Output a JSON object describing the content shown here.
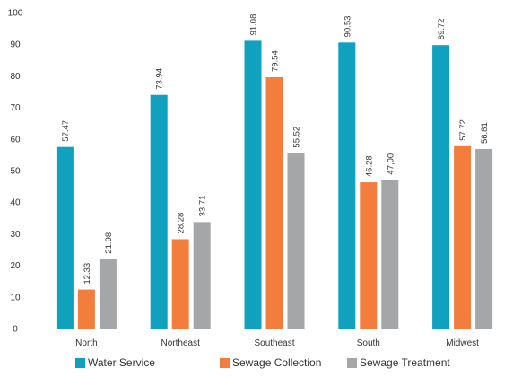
{
  "chart_data": {
    "type": "bar",
    "title": "",
    "xlabel": "",
    "ylabel": "",
    "categories": [
      "North",
      "Northeast",
      "Southeast",
      "South",
      "Midwest"
    ],
    "series": [
      {
        "name": "Water Service",
        "color": "#0fa1bd",
        "values": [
          57.47,
          73.94,
          91.08,
          90.53,
          89.72
        ],
        "labels": [
          "57.47",
          "73.94",
          "91.08",
          "90.53",
          "89.72"
        ]
      },
      {
        "name": "Sewage Collection",
        "color": "#f27d3d",
        "values": [
          12.33,
          28.28,
          79.54,
          46.28,
          57.72
        ],
        "labels": [
          "12.33",
          "28.28",
          "79.54",
          "46.28",
          "57.72"
        ]
      },
      {
        "name": "Sewage Treatment",
        "color": "#a5a6a8",
        "values": [
          21.98,
          33.71,
          55.52,
          47.0,
          56.81
        ],
        "labels": [
          "21.98",
          "33.71",
          "55.52",
          "47,00",
          "56.81"
        ]
      }
    ],
    "ylim": [
      0,
      100
    ],
    "yticks": [
      "0",
      "10",
      "20",
      "30",
      "40",
      "50",
      "60",
      "70",
      "80",
      "90",
      "100"
    ],
    "grid": false,
    "legend_position": "bottom"
  }
}
